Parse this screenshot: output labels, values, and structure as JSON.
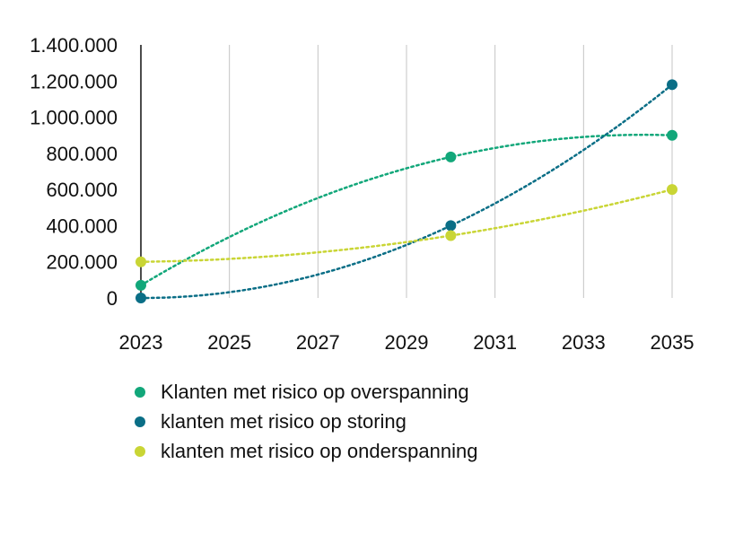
{
  "chart_data": {
    "type": "line",
    "x": [
      2023,
      2030,
      2035
    ],
    "x_ticks": [
      "2023",
      "2025",
      "2027",
      "2029",
      "2031",
      "2033",
      "2035"
    ],
    "xlim": [
      2023,
      2035
    ],
    "y_ticks": [
      "0",
      "200.000",
      "400.000",
      "600.000",
      "800.000",
      "1.000.000",
      "1.200.000",
      "1.400.000"
    ],
    "ylim": [
      0,
      1400000
    ],
    "grid": "vertical",
    "line_style": "dotted",
    "legend_position": "bottom",
    "series": [
      {
        "name": "Klanten met risico op overspanning",
        "color": "#12a77a",
        "values": [
          70000,
          780000,
          900000
        ]
      },
      {
        "name": "klanten met risico op storing",
        "color": "#0a6e86",
        "values": [
          0,
          400000,
          1180000
        ]
      },
      {
        "name": "klanten met risico op onderspanning",
        "color": "#c9d535",
        "values": [
          200000,
          345000,
          600000
        ]
      }
    ]
  }
}
